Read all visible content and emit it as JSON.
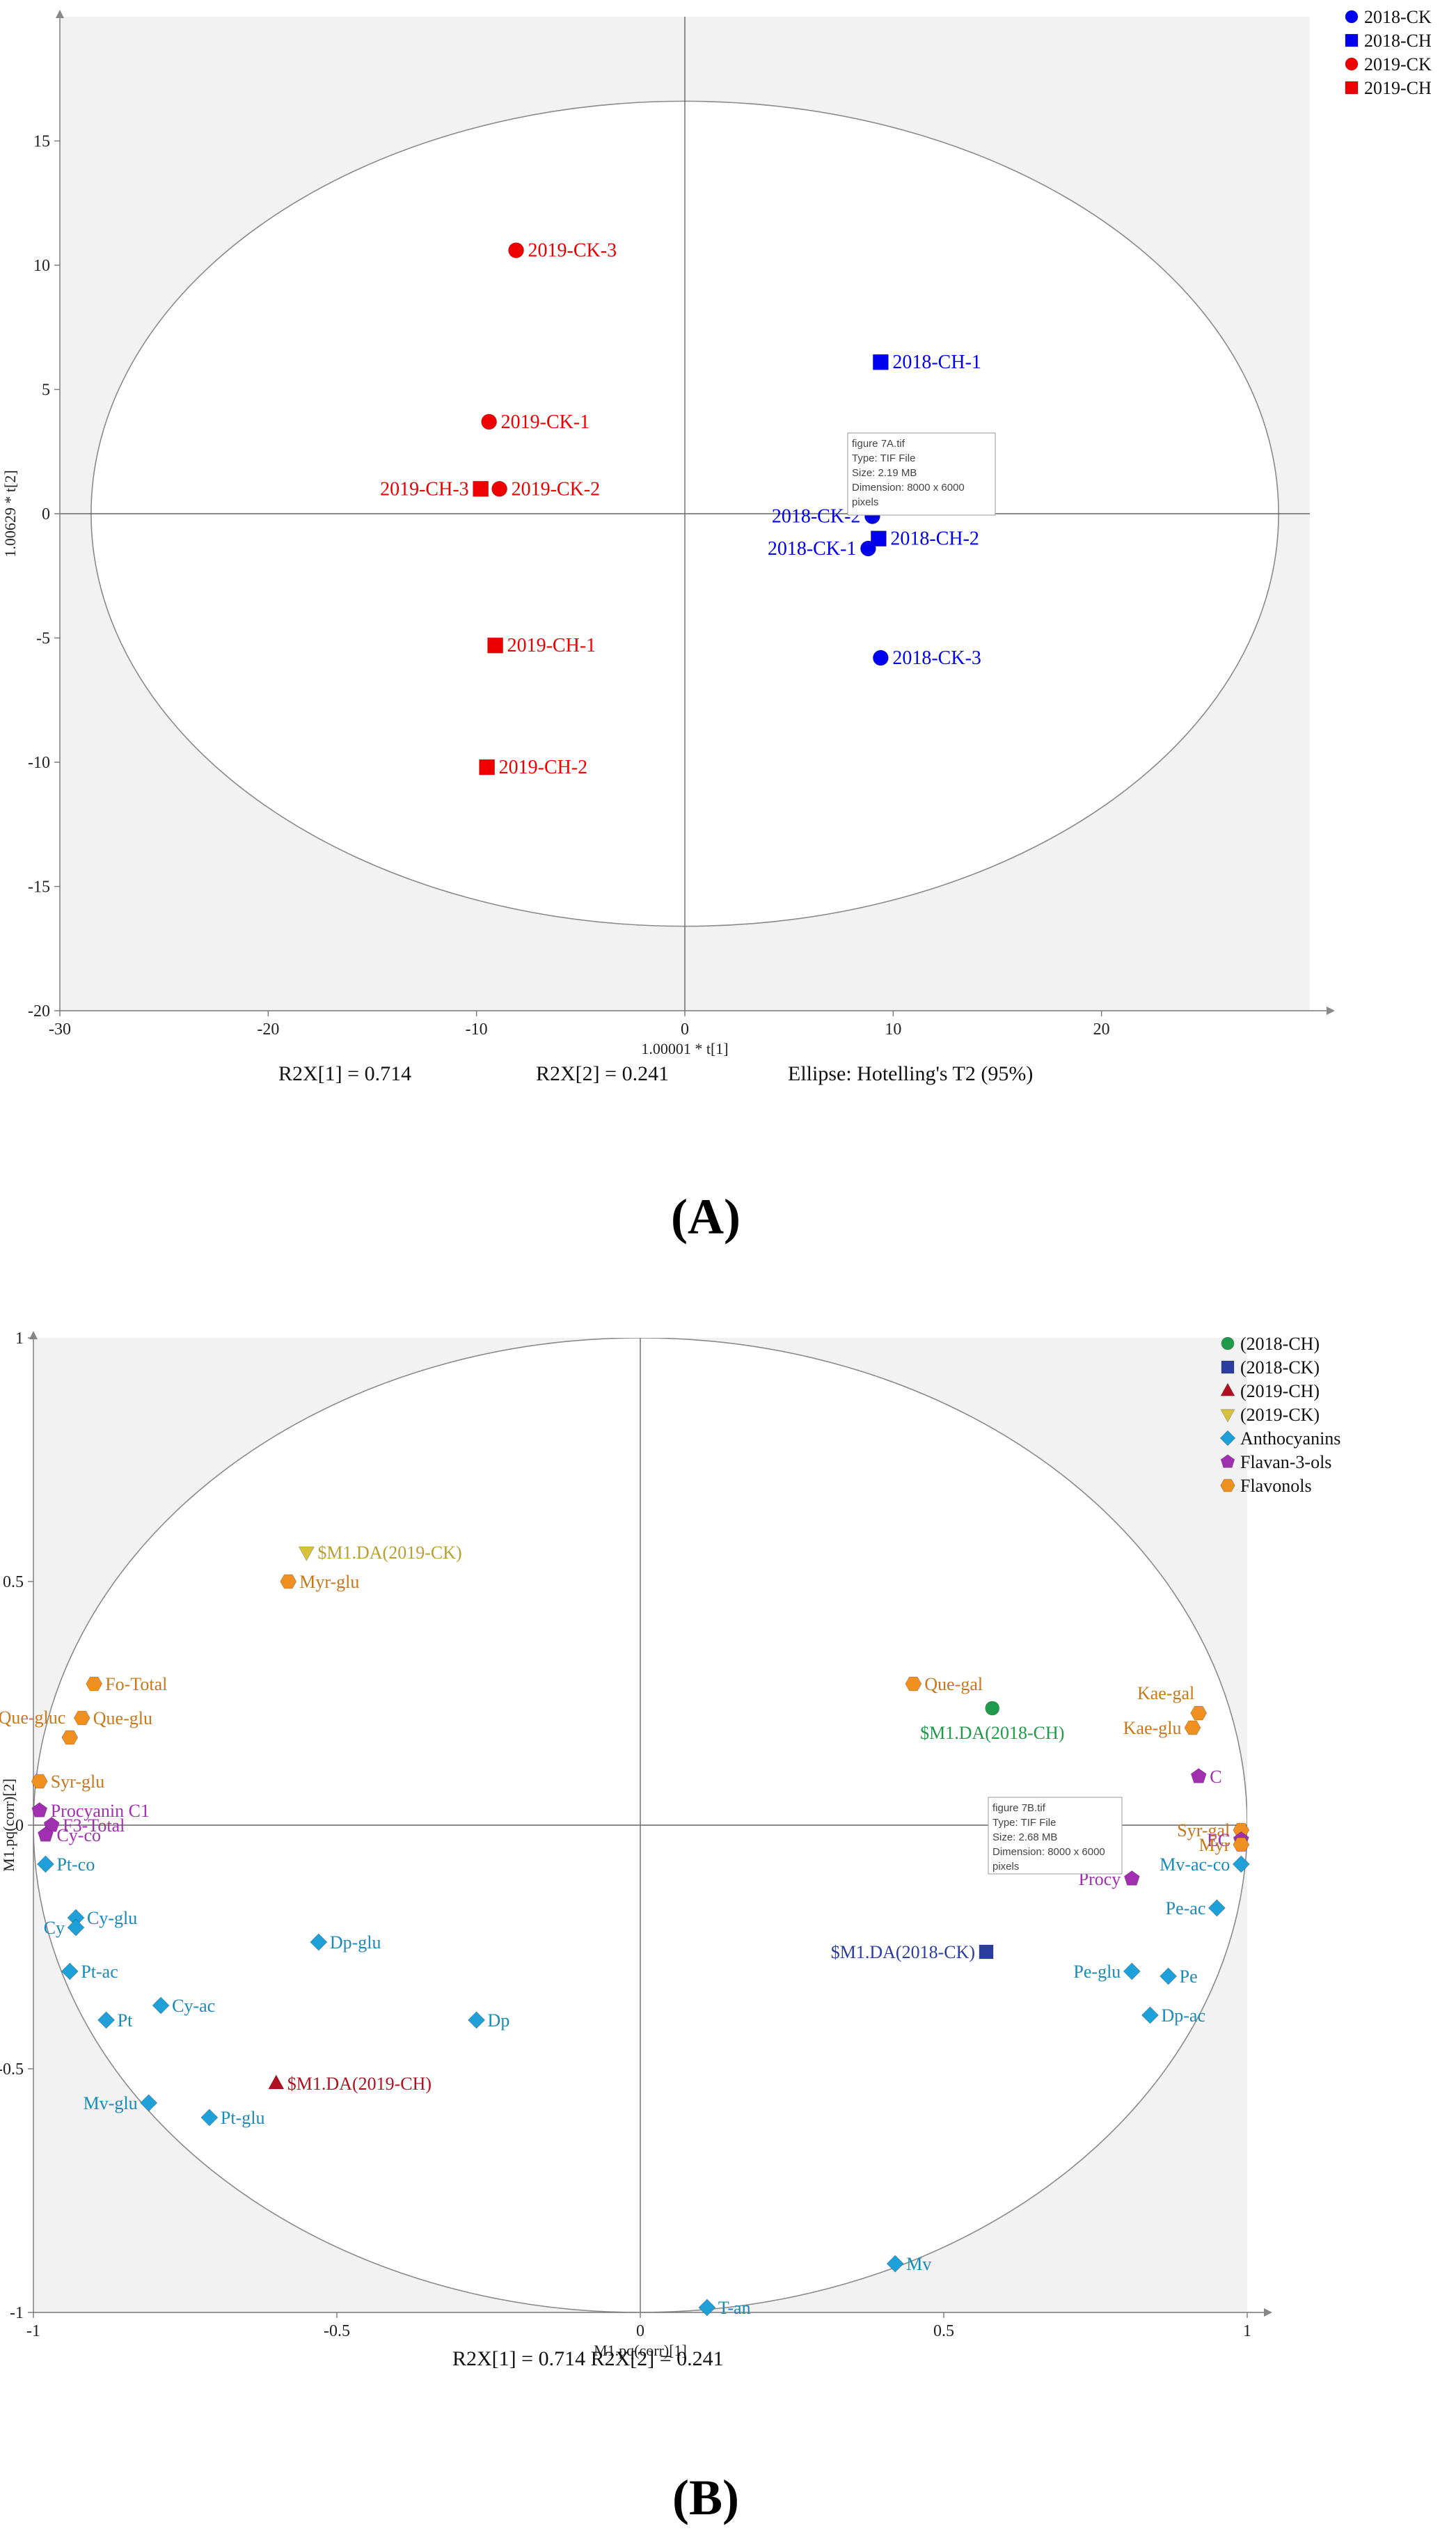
{
  "chart_data": [
    {
      "panel": "(A)",
      "type": "scatter",
      "xlabel": "1.00001 * t[1]",
      "ylabel": "1.00629 * t[2]",
      "xlim": [
        -30,
        30
      ],
      "ylim": [
        -20,
        20
      ],
      "xticks": [
        -30,
        -20,
        -10,
        0,
        10,
        20
      ],
      "yticks": [
        15,
        10,
        5,
        0,
        -5,
        -10,
        -15,
        -20
      ],
      "ellipse": {
        "rx": 28.5,
        "ry": 16.6
      },
      "legend": [
        {
          "label": "2018-CK",
          "marker": "circle",
          "color": "#0000ee"
        },
        {
          "label": "2018-CH",
          "marker": "square",
          "color": "#0000ee"
        },
        {
          "label": "2019-CK",
          "marker": "circle",
          "color": "#ee0000"
        },
        {
          "label": "2019-CH",
          "marker": "square",
          "color": "#ee0000"
        }
      ],
      "points": [
        {
          "label": "2019-CK-3",
          "x": -8.1,
          "y": 10.6,
          "marker": "circle",
          "color": "#ee0000",
          "anchor": "right"
        },
        {
          "label": "2018-CH-1",
          "x": 9.4,
          "y": 6.1,
          "marker": "square",
          "color": "#0000ee",
          "anchor": "right"
        },
        {
          "label": "2019-CK-1",
          "x": -9.4,
          "y": 3.7,
          "marker": "circle",
          "color": "#ee0000",
          "anchor": "right"
        },
        {
          "label": "2019-CH-3",
          "x": -9.8,
          "y": 1.0,
          "marker": "square",
          "color": "#ee0000",
          "anchor": "left"
        },
        {
          "label": "2019-CK-2",
          "x": -8.9,
          "y": 1.0,
          "marker": "circle",
          "color": "#ee0000",
          "anchor": "right"
        },
        {
          "label": "2018-CK-2",
          "x": 9.0,
          "y": -0.1,
          "marker": "circle",
          "color": "#0000ee",
          "anchor": "left"
        },
        {
          "label": "2018-CH-2",
          "x": 9.3,
          "y": -1.0,
          "marker": "square",
          "color": "#0000ee",
          "anchor": "right"
        },
        {
          "label": "2018-CK-1",
          "x": 8.8,
          "y": -1.4,
          "marker": "circle",
          "color": "#0000ee",
          "anchor": "left"
        },
        {
          "label": "2018-CK-3",
          "x": 9.4,
          "y": -5.8,
          "marker": "circle",
          "color": "#0000ee",
          "anchor": "right"
        },
        {
          "label": "2019-CH-1",
          "x": -9.1,
          "y": -5.3,
          "marker": "square",
          "color": "#ee0000",
          "anchor": "right"
        },
        {
          "label": "2019-CH-2",
          "x": -9.5,
          "y": -10.2,
          "marker": "square",
          "color": "#ee0000",
          "anchor": "right"
        }
      ],
      "stats": [
        "R2X[1] = 0.714",
        "R2X[2] = 0.241",
        "Ellipse: Hotelling's T2 (95%)"
      ],
      "tooltip": [
        "figure 7A.tif",
        "Type: TIF File",
        "Size: 2.19 MB",
        "Dimension: 8000 x 6000",
        "pixels"
      ]
    },
    {
      "panel": "(B)",
      "type": "scatter",
      "xlabel": "M1.pq(corr)[1]",
      "ylabel": "M1.pq(corr)[2]",
      "xlim": [
        -1,
        1
      ],
      "ylim": [
        -1,
        1
      ],
      "xticks": [
        -1,
        -0.5,
        0,
        0.5,
        1
      ],
      "yticks": [
        1,
        0.5,
        0,
        -0.5,
        -1
      ],
      "ellipse": {
        "rx": 1.0,
        "ry": 1.0
      },
      "legend": [
        {
          "label": "(2018-CH)",
          "marker": "circle",
          "color": "#1e9a4a"
        },
        {
          "label": "(2018-CK)",
          "marker": "square",
          "color": "#2b3ea0"
        },
        {
          "label": "(2019-CH)",
          "marker": "triangle",
          "color": "#b01020"
        },
        {
          "label": "(2019-CK)",
          "marker": "triangle-down",
          "color": "#d8c23a"
        },
        {
          "label": "Anthocyanins",
          "marker": "diamond",
          "color": "#1fa0d8"
        },
        {
          "label": "Flavan-3-ols",
          "marker": "pentagon",
          "color": "#a030b0"
        },
        {
          "label": "Flavonols",
          "marker": "hexagon",
          "color": "#f09020"
        }
      ],
      "points": [
        {
          "label": "$M1.DA(2019-CK)",
          "x": -0.55,
          "y": 0.56,
          "marker": "triangle-down",
          "color": "#d8c23a",
          "textColor": "#b8a030",
          "anchor": "right"
        },
        {
          "label": "Myr-glu",
          "x": -0.58,
          "y": 0.5,
          "marker": "hexagon",
          "color": "#f09020",
          "textColor": "#c8781a",
          "anchor": "right"
        },
        {
          "label": "Fo-Total",
          "x": -0.9,
          "y": 0.29,
          "marker": "hexagon",
          "color": "#f09020",
          "textColor": "#c8781a",
          "anchor": "right"
        },
        {
          "label": "Que-glu",
          "x": -0.92,
          "y": 0.22,
          "marker": "hexagon",
          "color": "#f09020",
          "textColor": "#c8781a",
          "anchor": "right"
        },
        {
          "label": "Que-gluc",
          "x": -0.94,
          "y": 0.18,
          "marker": "hexagon",
          "color": "#f09020",
          "textColor": "#c8781a",
          "anchor": "above-left"
        },
        {
          "label": "Syr-glu",
          "x": -0.99,
          "y": 0.09,
          "marker": "hexagon",
          "color": "#f09020",
          "textColor": "#c8781a",
          "anchor": "right"
        },
        {
          "label": "Procyanin C1",
          "x": -0.99,
          "y": 0.03,
          "marker": "pentagon",
          "color": "#a030b0",
          "textColor": "#a030b0",
          "anchor": "right"
        },
        {
          "label": "F3-Total",
          "x": -0.97,
          "y": 0.0,
          "marker": "pentagon",
          "color": "#a030b0",
          "textColor": "#a030b0",
          "anchor": "right"
        },
        {
          "label": "Cy-co",
          "x": -0.98,
          "y": -0.02,
          "marker": "pentagon",
          "color": "#a030b0",
          "textColor": "#a030b0",
          "anchor": "right"
        },
        {
          "label": "Pt-co",
          "x": -0.98,
          "y": -0.08,
          "marker": "diamond",
          "color": "#1fa0d8",
          "textColor": "#1a8ab8",
          "anchor": "right"
        },
        {
          "label": "Cy-glu",
          "x": -0.93,
          "y": -0.19,
          "marker": "diamond",
          "color": "#1fa0d8",
          "textColor": "#1a8ab8",
          "anchor": "right"
        },
        {
          "label": "Cy",
          "x": -0.93,
          "y": -0.21,
          "marker": "diamond",
          "color": "#1fa0d8",
          "textColor": "#1a8ab8",
          "anchor": "left"
        },
        {
          "label": "Pt-ac",
          "x": -0.94,
          "y": -0.3,
          "marker": "diamond",
          "color": "#1fa0d8",
          "textColor": "#1a8ab8",
          "anchor": "right"
        },
        {
          "label": "Pt",
          "x": -0.88,
          "y": -0.4,
          "marker": "diamond",
          "color": "#1fa0d8",
          "textColor": "#1a8ab8",
          "anchor": "right"
        },
        {
          "label": "Cy-ac",
          "x": -0.79,
          "y": -0.37,
          "marker": "diamond",
          "color": "#1fa0d8",
          "textColor": "#1a8ab8",
          "anchor": "right"
        },
        {
          "label": "Dp-glu",
          "x": -0.53,
          "y": -0.24,
          "marker": "diamond",
          "color": "#1fa0d8",
          "textColor": "#1a8ab8",
          "anchor": "right"
        },
        {
          "label": "Dp",
          "x": -0.27,
          "y": -0.4,
          "marker": "diamond",
          "color": "#1fa0d8",
          "textColor": "#1a8ab8",
          "anchor": "right"
        },
        {
          "label": "$M1.DA(2019-CH)",
          "x": -0.6,
          "y": -0.53,
          "marker": "triangle",
          "color": "#b01020",
          "textColor": "#b01020",
          "anchor": "right"
        },
        {
          "label": "Mv-glu",
          "x": -0.81,
          "y": -0.57,
          "marker": "diamond",
          "color": "#1fa0d8",
          "textColor": "#1a8ab8",
          "anchor": "left"
        },
        {
          "label": "Pt-glu",
          "x": -0.71,
          "y": -0.6,
          "marker": "diamond",
          "color": "#1fa0d8",
          "textColor": "#1a8ab8",
          "anchor": "right"
        },
        {
          "label": "Mv",
          "x": 0.42,
          "y": -0.9,
          "marker": "diamond",
          "color": "#1fa0d8",
          "textColor": "#1a8ab8",
          "anchor": "right"
        },
        {
          "label": "T-an",
          "x": 0.11,
          "y": -0.99,
          "marker": "diamond",
          "color": "#1fa0d8",
          "textColor": "#1a8ab8",
          "anchor": "right"
        },
        {
          "label": "Que-gal",
          "x": 0.45,
          "y": 0.29,
          "marker": "hexagon",
          "color": "#f09020",
          "textColor": "#c8781a",
          "anchor": "right"
        },
        {
          "label": "$M1.DA(2018-CH)",
          "x": 0.58,
          "y": 0.24,
          "marker": "circle",
          "color": "#1e9a4a",
          "textColor": "#1e9a4a",
          "anchor": "below"
        },
        {
          "label": "Kae-gal",
          "x": 0.92,
          "y": 0.23,
          "marker": "hexagon",
          "color": "#f09020",
          "textColor": "#c8781a",
          "anchor": "above-left"
        },
        {
          "label": "Kae-glu",
          "x": 0.91,
          "y": 0.2,
          "marker": "hexagon",
          "color": "#f09020",
          "textColor": "#c8781a",
          "anchor": "left"
        },
        {
          "label": "C",
          "x": 0.92,
          "y": 0.1,
          "marker": "pentagon",
          "color": "#a030b0",
          "textColor": "#a030b0",
          "anchor": "right"
        },
        {
          "label": "Syr-gal",
          "x": 0.99,
          "y": -0.01,
          "marker": "hexagon",
          "color": "#f09020",
          "textColor": "#c8781a",
          "anchor": "left"
        },
        {
          "label": "EC",
          "x": 0.99,
          "y": -0.03,
          "marker": "pentagon",
          "color": "#a030b0",
          "textColor": "#a030b0",
          "anchor": "left"
        },
        {
          "label": "Myr",
          "x": 0.99,
          "y": -0.04,
          "marker": "hexagon",
          "color": "#f09020",
          "textColor": "#c8781a",
          "anchor": "left"
        },
        {
          "label": "Mv-ac-co",
          "x": 0.99,
          "y": -0.08,
          "marker": "diamond",
          "color": "#1fa0d8",
          "textColor": "#1a8ab8",
          "anchor": "left"
        },
        {
          "label": "Procy",
          "x": 0.81,
          "y": -0.11,
          "marker": "pentagon",
          "color": "#a030b0",
          "textColor": "#a030b0",
          "anchor": "left"
        },
        {
          "label": "Pe-ac",
          "x": 0.95,
          "y": -0.17,
          "marker": "diamond",
          "color": "#1fa0d8",
          "textColor": "#1a8ab8",
          "anchor": "left"
        },
        {
          "label": "$M1.DA(2018-CK)",
          "x": 0.57,
          "y": -0.26,
          "marker": "square",
          "color": "#2b3ea0",
          "textColor": "#2b3ea0",
          "anchor": "left"
        },
        {
          "label": "Pe-glu",
          "x": 0.81,
          "y": -0.3,
          "marker": "diamond",
          "color": "#1fa0d8",
          "textColor": "#1a8ab8",
          "anchor": "left"
        },
        {
          "label": "Pe",
          "x": 0.87,
          "y": -0.31,
          "marker": "diamond",
          "color": "#1fa0d8",
          "textColor": "#1a8ab8",
          "anchor": "right"
        },
        {
          "label": "Dp-ac",
          "x": 0.84,
          "y": -0.39,
          "marker": "diamond",
          "color": "#1fa0d8",
          "textColor": "#1a8ab8",
          "anchor": "right"
        }
      ],
      "stats": [
        "R2X[1] = 0.714 R2X[2] = 0.241"
      ],
      "tooltip": [
        "figure 7B.tif",
        "Type: TIF File",
        "Size: 2.68 MB",
        "Dimension: 8000 x 6000",
        "pixels"
      ]
    }
  ]
}
